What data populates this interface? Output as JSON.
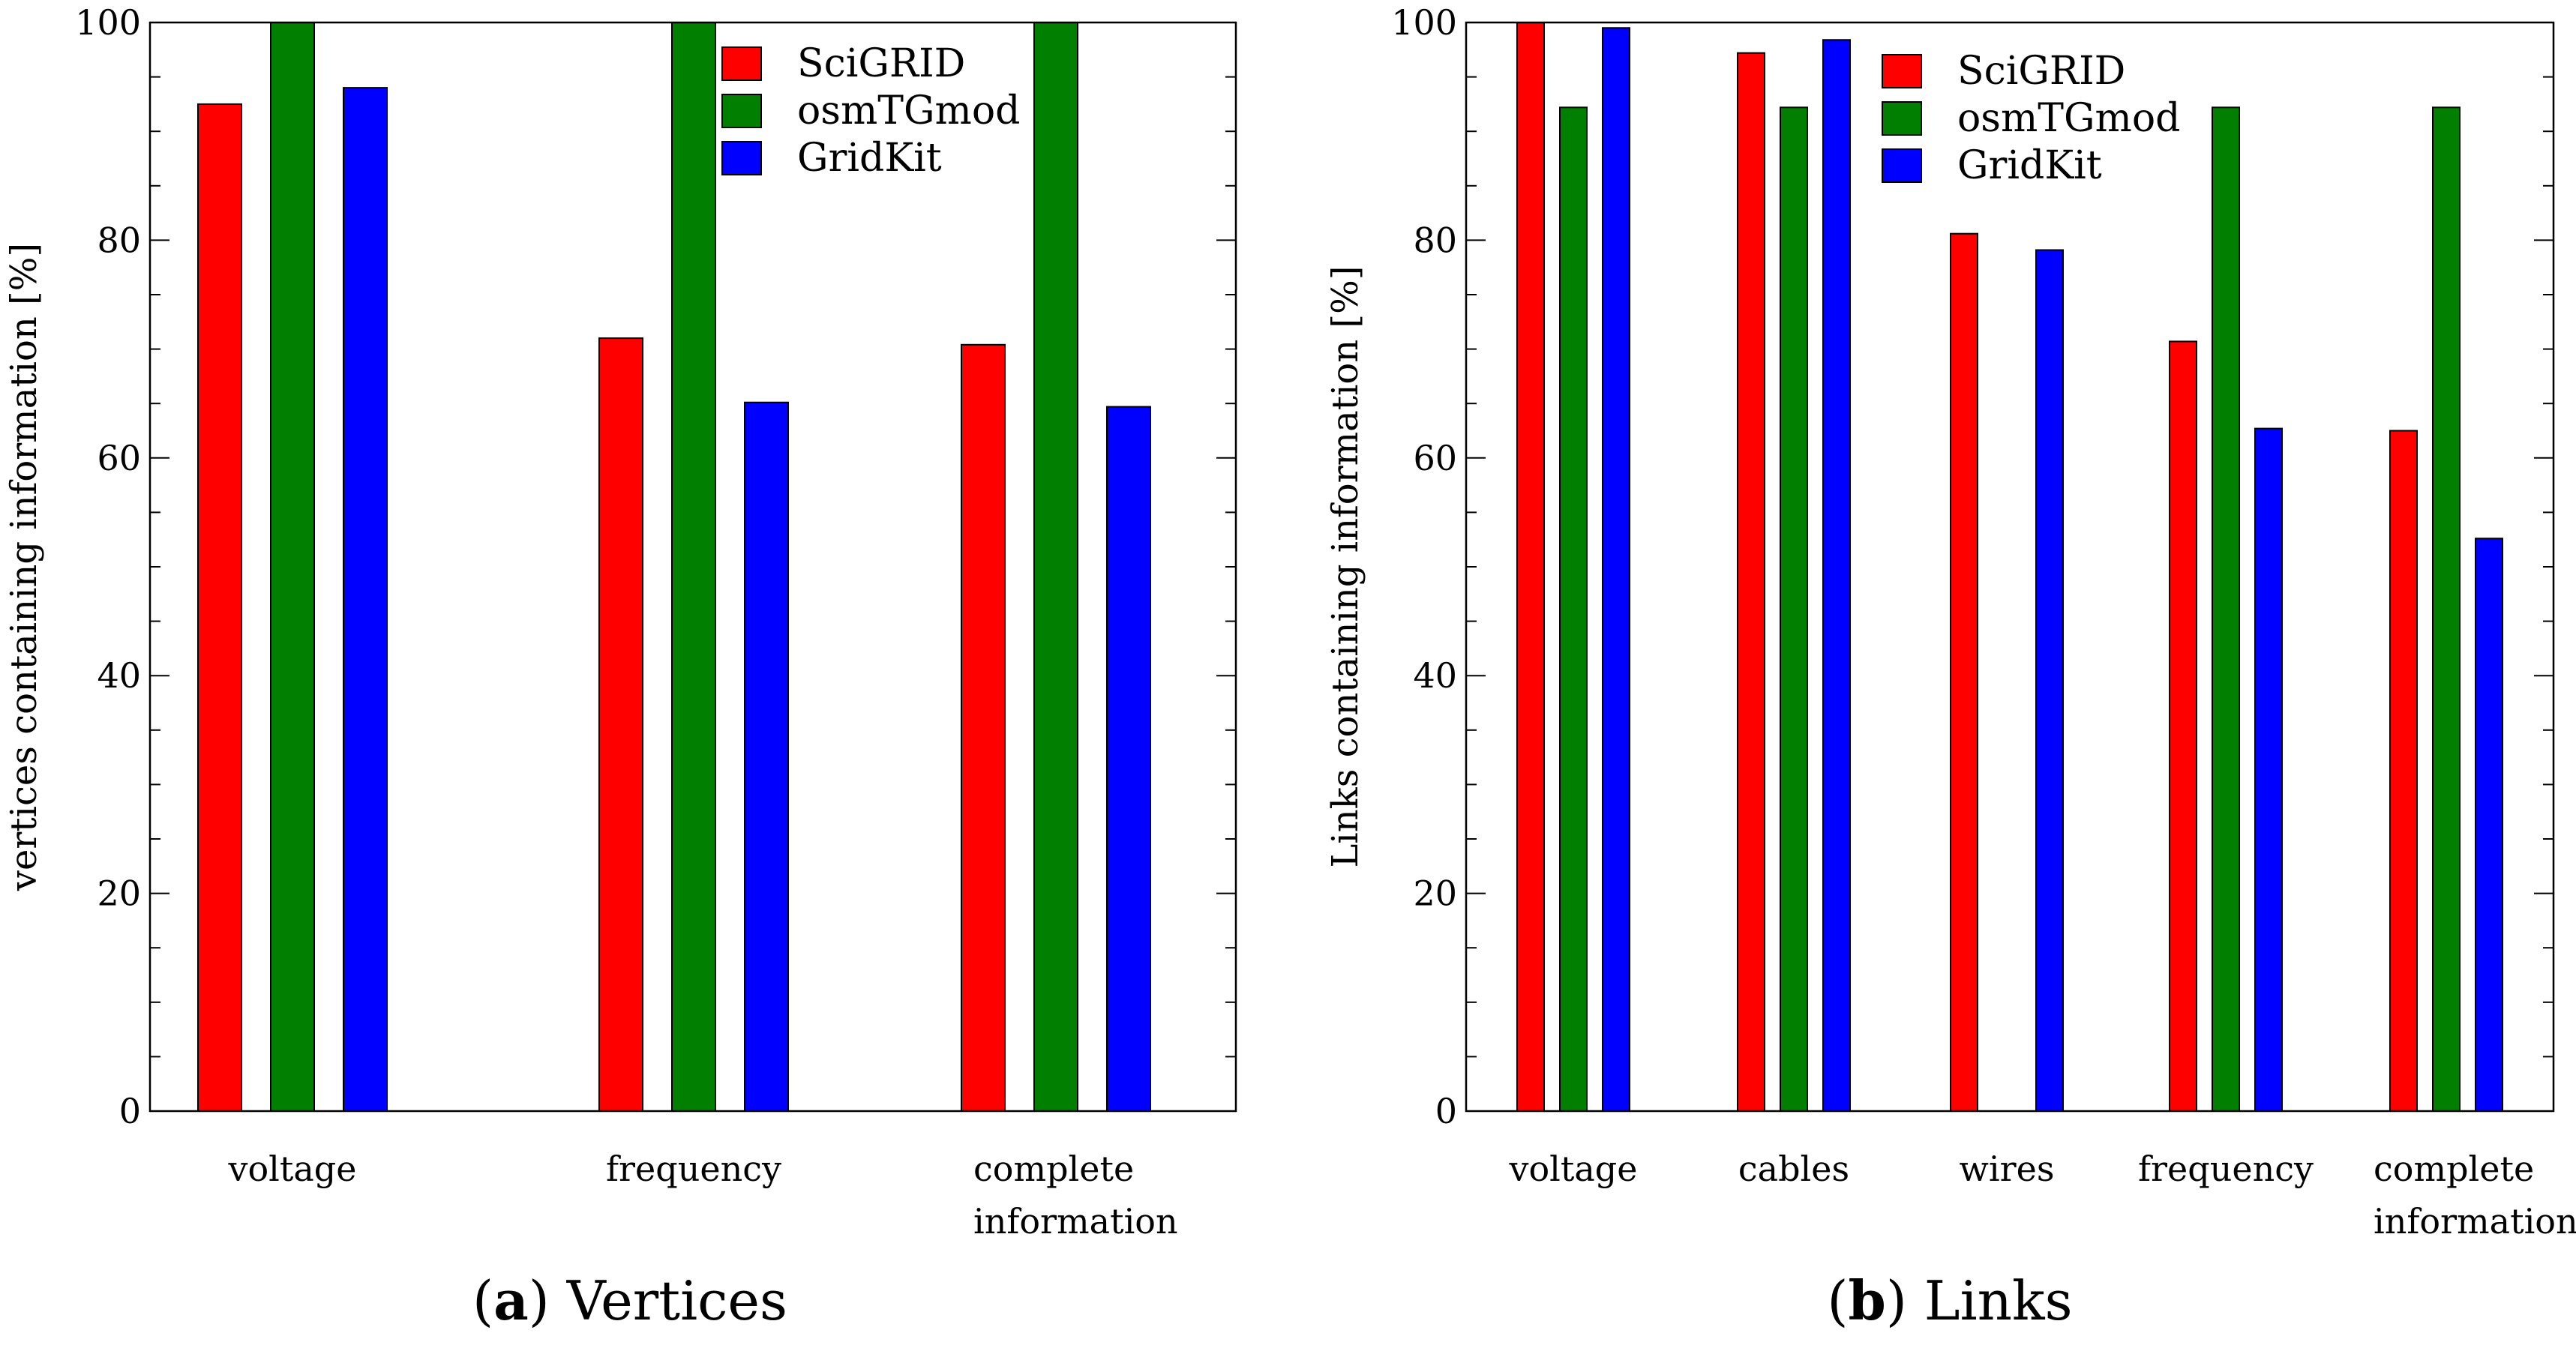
{
  "chart_data": [
    {
      "type": "bar",
      "title": "",
      "caption": {
        "letter": "a",
        "text": "Vertices"
      },
      "xlabel": "",
      "ylabel": "vertices containing information [%]",
      "ylim": [
        0,
        100
      ],
      "yticks": [
        "0",
        "20",
        "40",
        "60",
        "80",
        "100"
      ],
      "categories": [
        [
          "voltage"
        ],
        [
          "frequency"
        ],
        [
          "complete",
          "information"
        ]
      ],
      "series": [
        {
          "name": "SciGRID",
          "color": "#ff0000",
          "values": [
            92.5,
            71.0,
            70.4
          ]
        },
        {
          "name": "osmTGmod",
          "color": "#007f00",
          "values": [
            100,
            100,
            100
          ]
        },
        {
          "name": "GridKit",
          "color": "#0000ff",
          "values": [
            94.0,
            65.1,
            64.7
          ]
        }
      ],
      "legend": "top-right",
      "grid": false
    },
    {
      "type": "bar",
      "title": "",
      "caption": {
        "letter": "b",
        "text": "Links"
      },
      "xlabel": "",
      "ylabel": "Links containing information [%]",
      "ylim": [
        0,
        100
      ],
      "yticks": [
        "0",
        "20",
        "40",
        "60",
        "80",
        "100"
      ],
      "categories": [
        [
          "voltage"
        ],
        [
          "cables"
        ],
        [
          "wires"
        ],
        [
          "frequency"
        ],
        [
          "complete",
          "information"
        ]
      ],
      "series": [
        {
          "name": "SciGRID",
          "color": "#ff0000",
          "values": [
            100,
            97.2,
            80.6,
            70.7,
            62.5
          ]
        },
        {
          "name": "osmTGmod",
          "color": "#007f00",
          "values": [
            92.2,
            92.2,
            null,
            92.2,
            92.2
          ]
        },
        {
          "name": "GridKit",
          "color": "#0000ff",
          "values": [
            99.5,
            98.4,
            79.1,
            62.7,
            52.6
          ]
        }
      ],
      "legend": "top-right",
      "grid": false
    }
  ]
}
